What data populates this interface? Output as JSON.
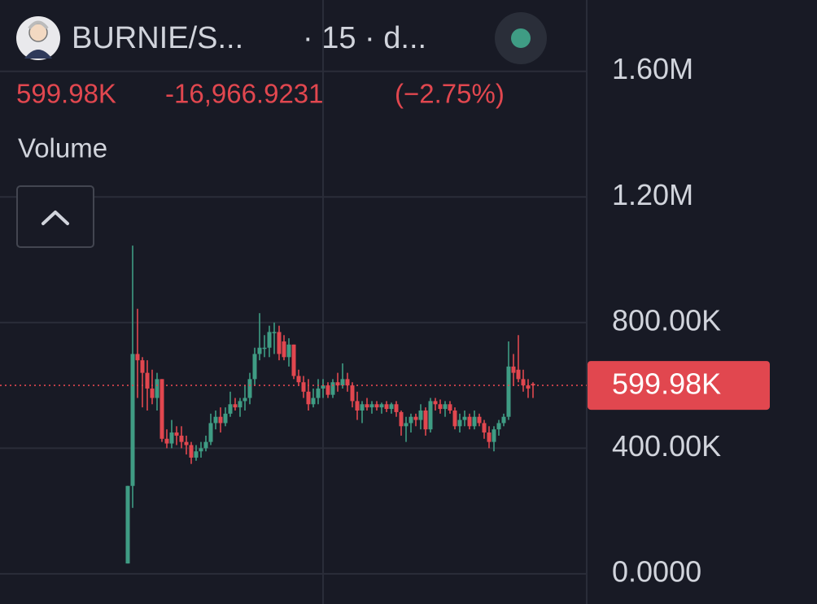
{
  "chart_data": {
    "type": "candlestick",
    "title": "BURNIE/S...",
    "subtitle": "· 15 · d...",
    "annotations": [
      "-16,966.9231",
      "(−2.75%)",
      "Volume"
    ],
    "up_color": "#3f9c84",
    "down_color": "#e1474f",
    "grid": true,
    "ylim": [
      -96000,
      1827000
    ],
    "yticks": [
      {
        "value": 0,
        "label": "0.0000"
      },
      {
        "value": 400000,
        "label": "400.00K"
      },
      {
        "value": 800000,
        "label": "800.00K"
      },
      {
        "value": 1200000,
        "label": "1.20M"
      },
      {
        "value": 1600000,
        "label": "1.60M"
      }
    ],
    "last_price": {
      "value": 599980,
      "label": "599.98K"
    },
    "open": [
      33000,
      280000,
      700000,
      680000,
      640000,
      590000,
      560000,
      620000,
      430000,
      415000,
      450000,
      440000,
      420000,
      410000,
      370000,
      390000,
      400000,
      420000,
      480000,
      500000,
      480000,
      510000,
      540000,
      530000,
      550000,
      560000,
      620000,
      700000,
      720000,
      720000,
      770000,
      770000,
      740000,
      690000,
      730000,
      630000,
      610000,
      580000,
      540000,
      560000,
      590000,
      600000,
      570000,
      610000,
      600000,
      620000,
      600000,
      550000,
      520000,
      540000,
      530000,
      540000,
      530000,
      540000,
      525000,
      540000,
      515000,
      470000,
      480000,
      500000,
      490000,
      520000,
      460000,
      550000,
      540000,
      525000,
      540000,
      520000,
      470000,
      490000,
      500000,
      470000,
      500000,
      480000,
      450000,
      420000,
      460000,
      480000,
      500000,
      660000,
      650000,
      620000,
      600000,
      605000
    ],
    "high": [
      280000,
      1045000,
      844000,
      690000,
      680000,
      650000,
      640000,
      620000,
      460000,
      490000,
      470000,
      470000,
      440000,
      420000,
      410000,
      420000,
      440000,
      510000,
      520000,
      530000,
      530000,
      580000,
      560000,
      560000,
      600000,
      640000,
      720000,
      830000,
      760000,
      790000,
      800000,
      790000,
      760000,
      750000,
      730000,
      650000,
      630000,
      620000,
      590000,
      620000,
      620000,
      610000,
      620000,
      640000,
      670000,
      640000,
      610000,
      580000,
      550000,
      560000,
      550000,
      550000,
      545000,
      550000,
      545000,
      550000,
      520000,
      500000,
      510000,
      510000,
      540000,
      530000,
      560000,
      560000,
      555000,
      550000,
      550000,
      530000,
      510000,
      520000,
      510000,
      520000,
      510000,
      490000,
      470000,
      470000,
      490000,
      510000,
      740000,
      700000,
      760000,
      650000,
      620000,
      610000
    ],
    "low": [
      33000,
      210000,
      560000,
      530000,
      520000,
      540000,
      520000,
      420000,
      400000,
      400000,
      410000,
      400000,
      380000,
      350000,
      360000,
      370000,
      390000,
      410000,
      460000,
      450000,
      470000,
      500000,
      520000,
      500000,
      520000,
      540000,
      600000,
      680000,
      690000,
      690000,
      700000,
      680000,
      680000,
      660000,
      620000,
      600000,
      560000,
      520000,
      530000,
      540000,
      560000,
      560000,
      560000,
      580000,
      590000,
      580000,
      530000,
      490000,
      480000,
      520000,
      510000,
      520000,
      510000,
      515000,
      510000,
      500000,
      440000,
      420000,
      450000,
      470000,
      460000,
      440000,
      450000,
      520000,
      510000,
      500000,
      510000,
      460000,
      450000,
      470000,
      460000,
      460000,
      470000,
      430000,
      400000,
      390000,
      440000,
      470000,
      490000,
      600000,
      610000,
      580000,
      560000,
      560000
    ],
    "close": [
      280000,
      700000,
      680000,
      640000,
      590000,
      560000,
      620000,
      430000,
      415000,
      450000,
      440000,
      420000,
      410000,
      370000,
      390000,
      400000,
      420000,
      480000,
      500000,
      480000,
      510000,
      540000,
      530000,
      550000,
      560000,
      620000,
      700000,
      720000,
      720000,
      770000,
      770000,
      700000,
      690000,
      730000,
      630000,
      610000,
      580000,
      540000,
      560000,
      590000,
      600000,
      570000,
      610000,
      600000,
      620000,
      600000,
      550000,
      520000,
      540000,
      530000,
      540000,
      530000,
      540000,
      525000,
      540000,
      515000,
      470000,
      480000,
      500000,
      490000,
      520000,
      460000,
      550000,
      540000,
      525000,
      540000,
      520000,
      470000,
      490000,
      500000,
      470000,
      500000,
      480000,
      450000,
      420000,
      460000,
      480000,
      500000,
      660000,
      640000,
      620000,
      600000,
      590000,
      599980
    ]
  }
}
